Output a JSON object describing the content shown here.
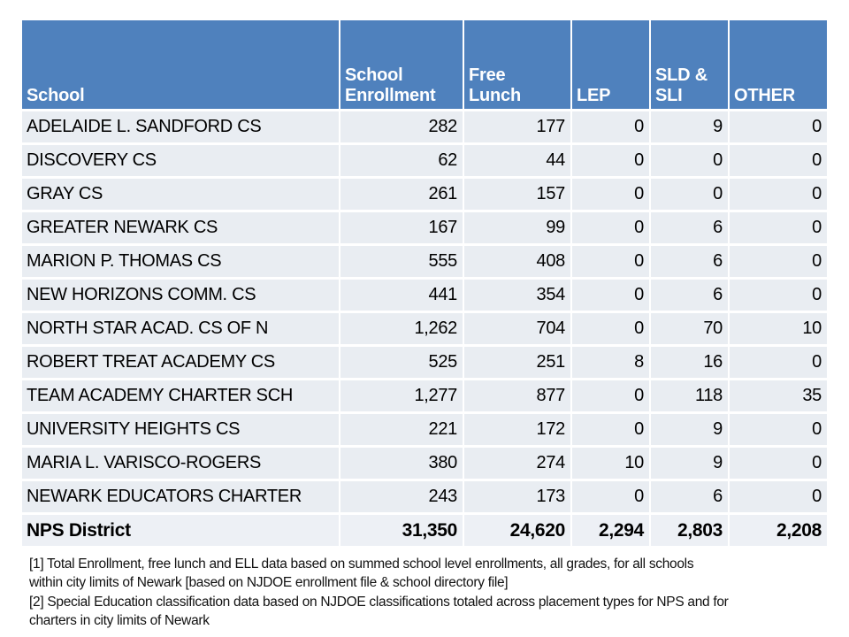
{
  "colors": {
    "page_bg": "#FFFFFF",
    "header_bg": "#4F81BD",
    "header_text": "#FFFFFF",
    "row_bg": "#E9EDF2",
    "total_row_bg": "#EDF0F5",
    "gridline": "#FFFFFF",
    "body_text": "#000000"
  },
  "table": {
    "columns": [
      {
        "label": "School"
      },
      {
        "label": "School\nEnrollment"
      },
      {
        "label": "Free\nLunch"
      },
      {
        "label": "LEP"
      },
      {
        "label": "SLD &\nSLI"
      },
      {
        "label": "OTHER"
      }
    ],
    "rows": [
      [
        "ADELAIDE L. SANDFORD CS",
        "282",
        "177",
        "0",
        "9",
        "0"
      ],
      [
        "DISCOVERY CS",
        "62",
        "44",
        "0",
        "0",
        "0"
      ],
      [
        "GRAY CS",
        "261",
        "157",
        "0",
        "0",
        "0"
      ],
      [
        "GREATER NEWARK CS",
        "167",
        "99",
        "0",
        "6",
        "0"
      ],
      [
        "MARION P. THOMAS CS",
        "555",
        "408",
        "0",
        "6",
        "0"
      ],
      [
        "NEW HORIZONS COMM. CS",
        "441",
        "354",
        "0",
        "6",
        "0"
      ],
      [
        "NORTH STAR ACAD. CS OF N",
        "1,262",
        "704",
        "0",
        "70",
        "10"
      ],
      [
        "ROBERT TREAT ACADEMY CS",
        "525",
        "251",
        "8",
        "16",
        "0"
      ],
      [
        "TEAM ACADEMY CHARTER SCH",
        "1,277",
        "877",
        "0",
        "118",
        "35"
      ],
      [
        "UNIVERSITY HEIGHTS CS",
        "221",
        "172",
        "0",
        "9",
        "0"
      ],
      [
        "MARIA L. VARISCO-ROGERS",
        "380",
        "274",
        "10",
        "9",
        "0"
      ],
      [
        "NEWARK EDUCATORS CHARTER",
        "243",
        "173",
        "0",
        "6",
        "0"
      ]
    ],
    "total_row": [
      "NPS District",
      "31,350",
      "24,620",
      "2,294",
      "2,803",
      "2,208"
    ]
  },
  "footnotes": [
    "[1] Total Enrollment, free lunch and ELL data based on summed school level enrollments, all grades, for all schools\nwithin city limits of Newark [based on NJDOE enrollment file & school directory file]",
    "[2] Special Education classification data based on NJDOE classifications totaled across placement types for NPS and for\ncharters in city limits of Newark"
  ]
}
